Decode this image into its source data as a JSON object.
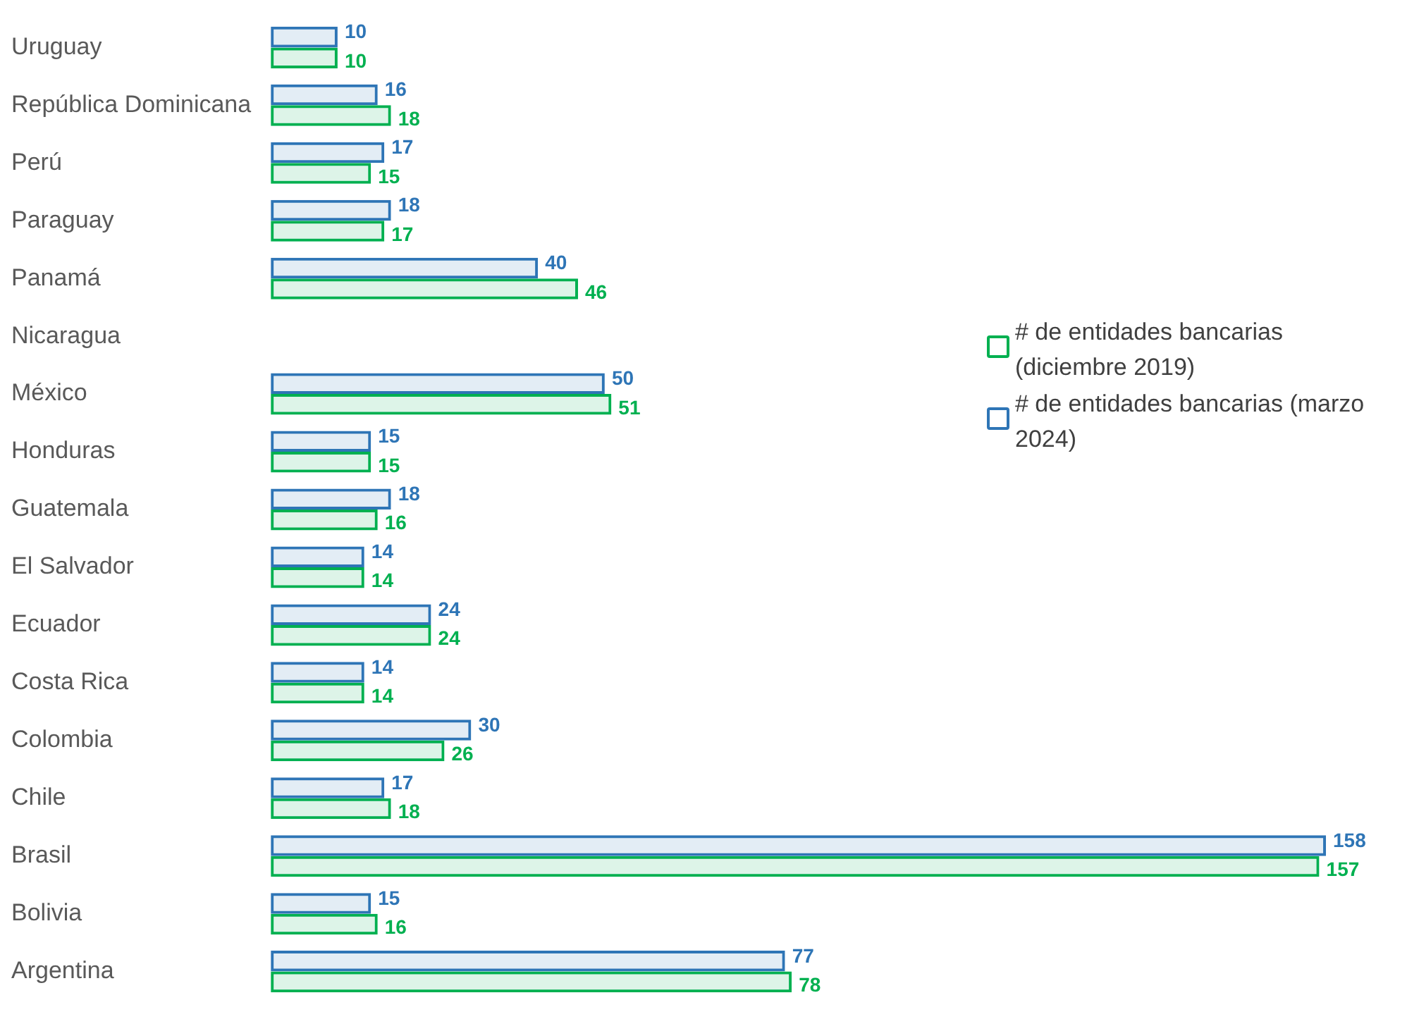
{
  "chart_data": {
    "type": "bar",
    "orientation": "horizontal",
    "categories": [
      "Uruguay",
      "República Dominicana",
      "Perú",
      "Paraguay",
      "Panamá",
      "Nicaragua",
      "México",
      "Honduras",
      "Guatemala",
      "El Salvador",
      "Ecuador",
      "Costa Rica",
      "Colombia",
      "Chile",
      "Brasil",
      "Bolivia",
      "Argentina"
    ],
    "series": [
      {
        "name": "# de entidades bancarias (diciembre 2019)",
        "color": "#00b050",
        "values": [
          10,
          18,
          15,
          17,
          46,
          0,
          51,
          15,
          16,
          14,
          24,
          14,
          26,
          18,
          157,
          16,
          78
        ],
        "value_labels": [
          "10",
          "18",
          "15",
          "17",
          "46",
          null,
          "51",
          "15",
          "16",
          "14",
          "24",
          "14",
          "26",
          "18",
          "157",
          "16",
          "78"
        ]
      },
      {
        "name": "# de entidades bancarias (marzo 2024)",
        "color": "#2e75b6",
        "values": [
          10,
          16,
          17,
          18,
          40,
          0,
          50,
          15,
          18,
          14,
          24,
          14,
          30,
          17,
          158,
          15,
          77
        ],
        "value_labels": [
          "10",
          "16",
          "17",
          "18",
          "40",
          null,
          "50",
          "15",
          "18",
          "14",
          "24",
          "14",
          "30",
          "17",
          "158",
          "15",
          "77"
        ]
      }
    ],
    "tick_labels": "y",
    "legend": "right"
  }
}
